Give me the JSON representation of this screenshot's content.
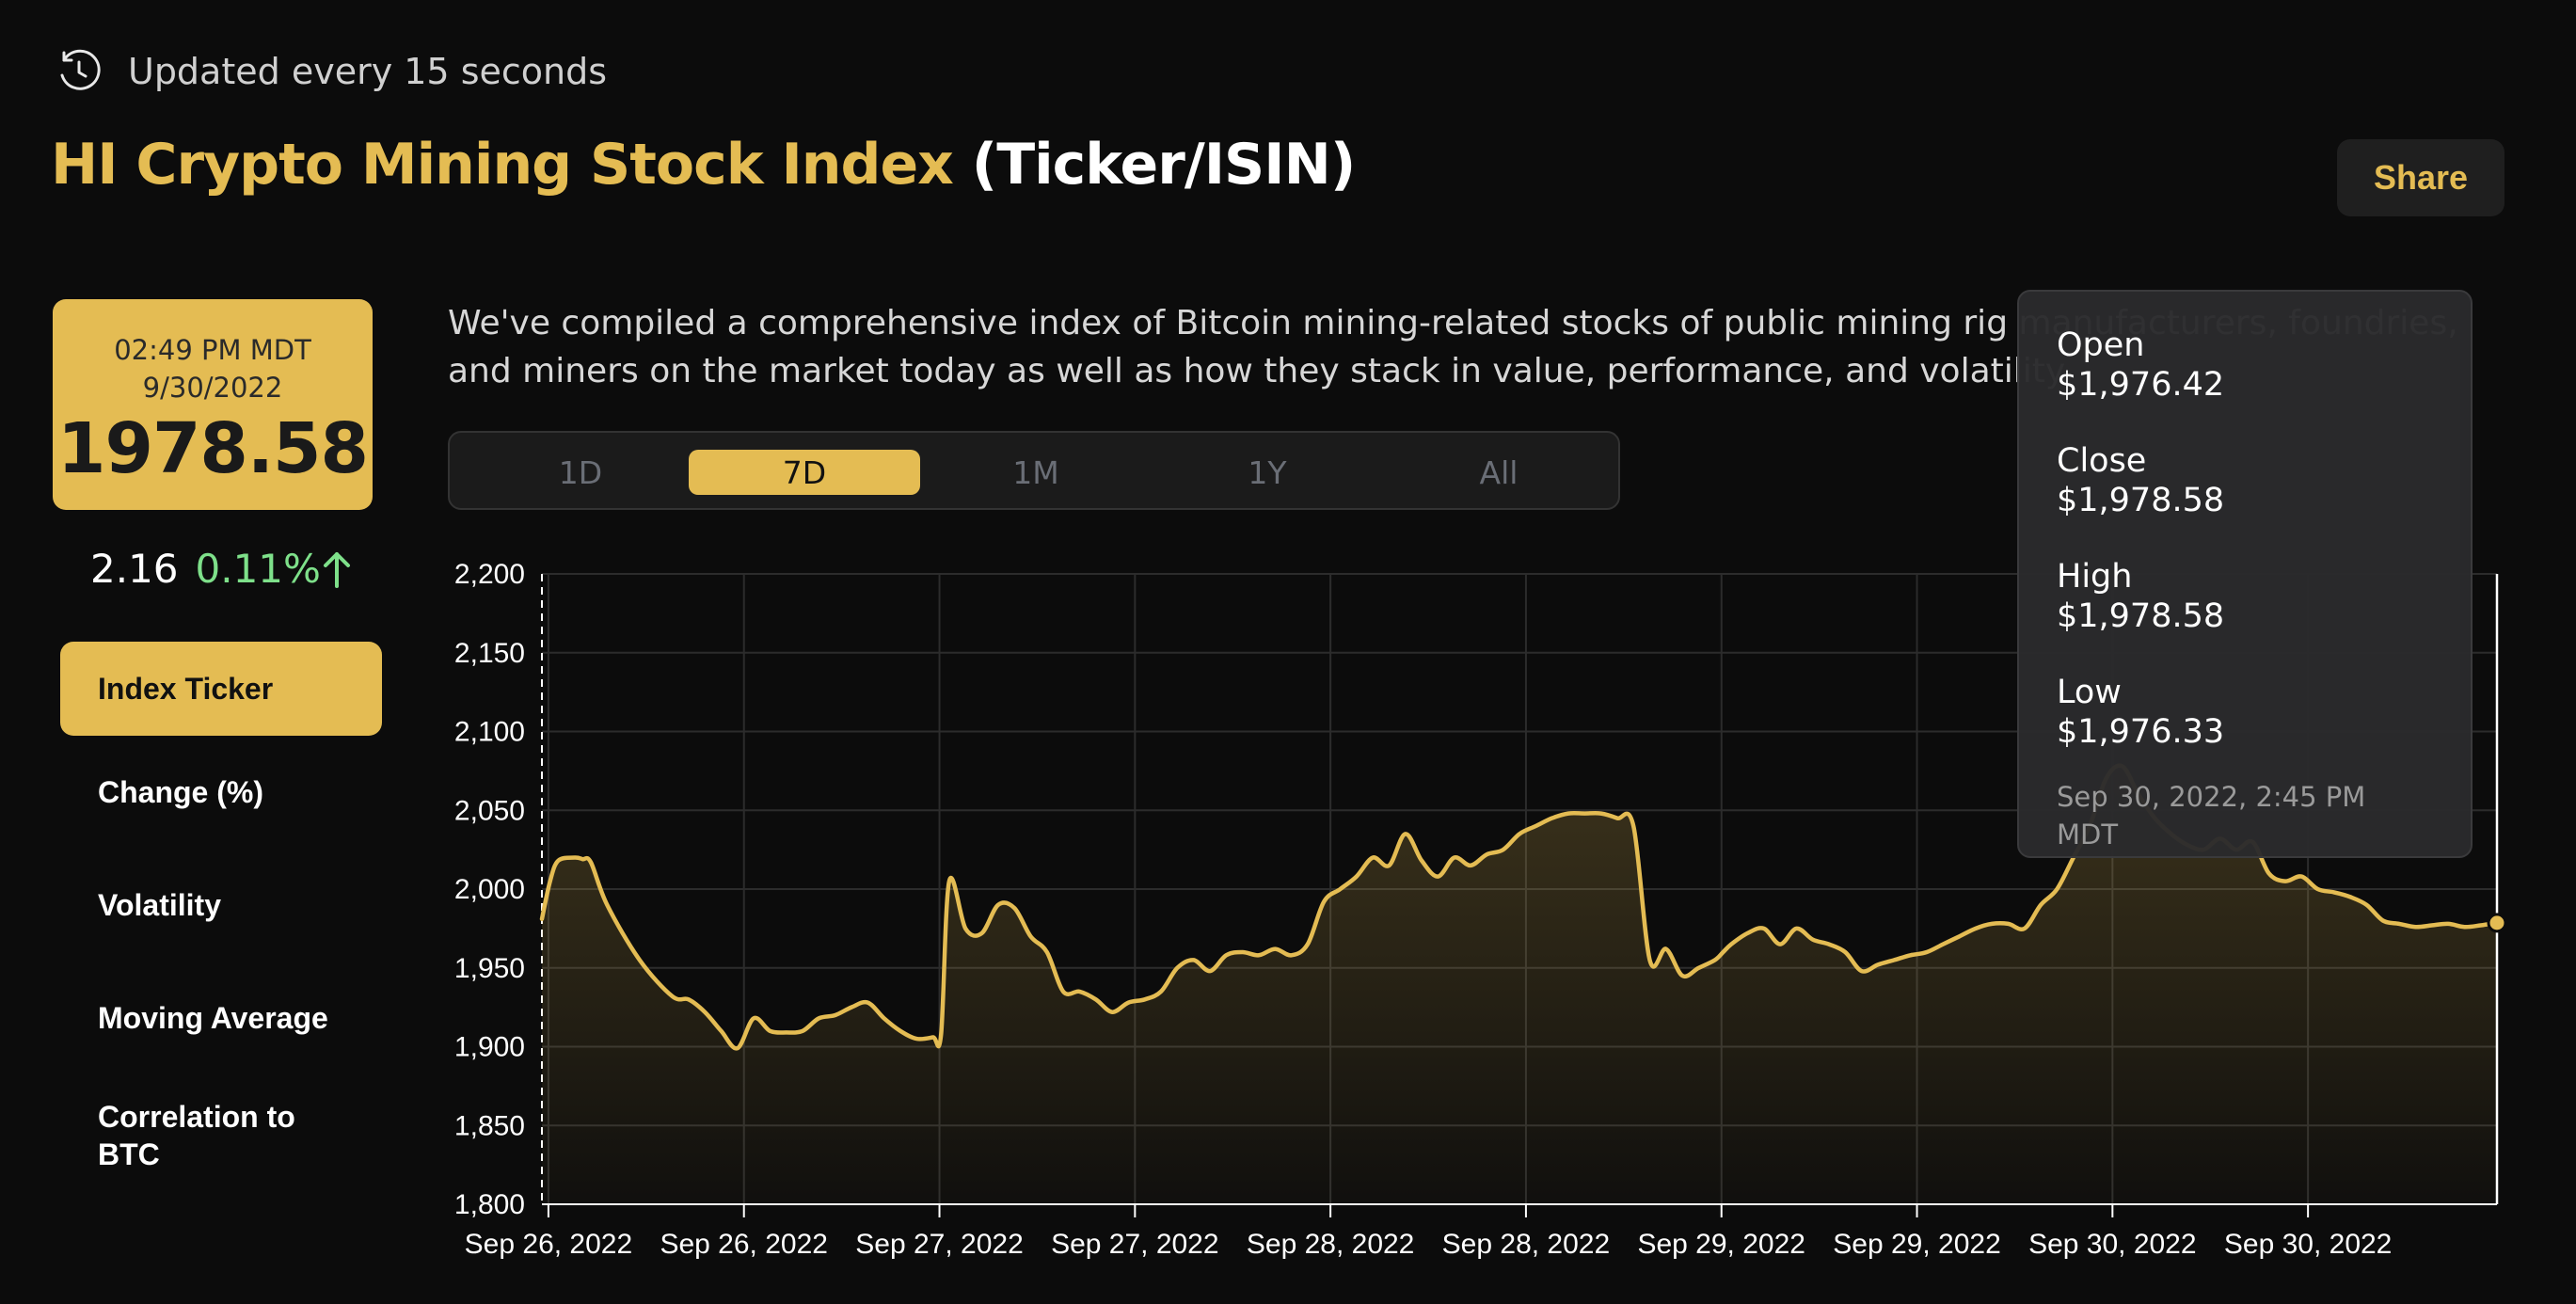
{
  "header": {
    "updated_text": "Updated every 15 seconds",
    "title_main": "HI Crypto Mining Stock Index",
    "title_suffix": "(Ticker/ISIN)",
    "share_label": "Share"
  },
  "price_card": {
    "time": "02:49 PM MDT",
    "date": "9/30/2022",
    "value": "1978.58"
  },
  "change": {
    "absolute": "2.16",
    "percent": "0.11%",
    "direction": "up"
  },
  "sidebar": {
    "items": [
      {
        "label": "Index Ticker",
        "active": true
      },
      {
        "label": "Change (%)",
        "active": false
      },
      {
        "label": "Volatility",
        "active": false
      },
      {
        "label": "Moving Average",
        "active": false
      },
      {
        "label": "Correlation to BTC",
        "active": false
      }
    ]
  },
  "description": "We've compiled a comprehensive index of Bitcoin mining-related stocks of public mining rig manufacturers, foundries, and miners on the market today as well as how they stack in value, performance, and volatility.",
  "range_tabs": [
    {
      "label": "1D",
      "active": false
    },
    {
      "label": "7D",
      "active": true
    },
    {
      "label": "1M",
      "active": false
    },
    {
      "label": "1Y",
      "active": false
    },
    {
      "label": "All",
      "active": false
    }
  ],
  "tooltip": {
    "open_label": "Open",
    "open_value": "$1,976.42",
    "close_label": "Close",
    "close_value": "$1,978.58",
    "high_label": "High",
    "high_value": "$1,978.58",
    "low_label": "Low",
    "low_value": "$1,976.33",
    "timestamp": "Sep 30, 2022, 2:45 PM MDT"
  },
  "colors": {
    "accent": "#e4bc53",
    "background": "#0c0c0c",
    "positive": "#7ee08a"
  },
  "icons": {
    "updated": "clock-refresh-icon",
    "change_direction": "arrow-up-icon"
  },
  "chart_data": {
    "type": "area",
    "ylim": [
      1800,
      2200
    ],
    "y_ticks": [
      "2,200",
      "2,150",
      "2,100",
      "2,050",
      "2,000",
      "1,950",
      "1,900",
      "1,850",
      "1,800"
    ],
    "y_tick_values": [
      2200,
      2150,
      2100,
      2050,
      2000,
      1950,
      1900,
      1850,
      1800
    ],
    "x_ticks": [
      "Sep 26, 2022",
      "Sep 26, 2022",
      "Sep 27, 2022",
      "Sep 27, 2022",
      "Sep 28, 2022",
      "Sep 28, 2022",
      "Sep 29, 2022",
      "Sep 29, 2022",
      "Sep 30, 2022",
      "Sep 30, 2022"
    ],
    "x_range_hours": [
      0,
      120
    ],
    "series": [
      {
        "x": [
          0,
          0.5,
          1,
          2,
          2.5,
          3,
          4,
          6,
          8,
          9,
          10,
          11,
          12,
          13,
          14,
          15,
          16,
          17,
          18,
          19,
          20,
          21,
          22,
          23,
          24,
          24.5,
          25,
          26,
          27,
          28,
          29,
          30,
          31,
          32,
          33,
          34,
          35,
          36,
          37,
          38,
          39,
          40,
          41,
          42,
          43,
          44,
          45,
          46,
          47,
          48,
          49,
          50,
          51,
          52,
          53,
          54,
          55,
          56,
          57,
          58,
          59,
          60,
          61,
          62,
          63,
          64,
          65,
          66,
          67,
          68,
          69,
          70,
          71,
          72,
          72.5,
          73,
          74,
          75,
          76,
          77,
          78,
          79,
          80,
          81,
          82,
          83,
          84,
          85,
          86,
          87,
          88,
          89,
          90,
          91,
          92,
          93,
          94,
          95,
          96,
          97,
          98,
          99,
          100,
          101,
          102,
          103,
          104,
          105,
          106,
          107,
          108,
          109,
          110,
          111,
          112,
          113,
          114,
          115,
          116,
          117,
          118,
          119,
          120
        ],
        "y": [
          1981,
          2005,
          2018,
          2020,
          2019,
          2017,
          1990,
          1955,
          1932,
          1930,
          1922,
          1910,
          1899,
          1918,
          1910,
          1909,
          1910,
          1918,
          1920,
          1925,
          1928,
          1918,
          1910,
          1905,
          1906,
          1908,
          2005,
          1975,
          1972,
          1990,
          1988,
          1970,
          1960,
          1935,
          1935,
          1930,
          1922,
          1928,
          1930,
          1935,
          1950,
          1955,
          1948,
          1958,
          1960,
          1958,
          1962,
          1958,
          1965,
          1992,
          2000,
          2008,
          2020,
          2015,
          2035,
          2018,
          2008,
          2020,
          2015,
          2022,
          2025,
          2035,
          2040,
          2045,
          2048,
          2048,
          2048,
          2045,
          2040,
          1955,
          1962,
          1945,
          1950,
          1955,
          1960,
          1965,
          1972,
          1975,
          1965,
          1975,
          1968,
          1965,
          1960,
          1948,
          1952,
          1955,
          1958,
          1960,
          1965,
          1970,
          1975,
          1978,
          1978,
          1975,
          1990,
          2000,
          2020,
          2040,
          2070,
          2078,
          2060,
          2045,
          2035,
          2028,
          2025,
          2032,
          2025,
          2030,
          2010,
          2005,
          2008,
          2000,
          1998,
          1995,
          1990,
          1980,
          1978,
          1976,
          1977,
          1978,
          1976,
          1977,
          1978.58
        ]
      }
    ],
    "grid": true
  }
}
